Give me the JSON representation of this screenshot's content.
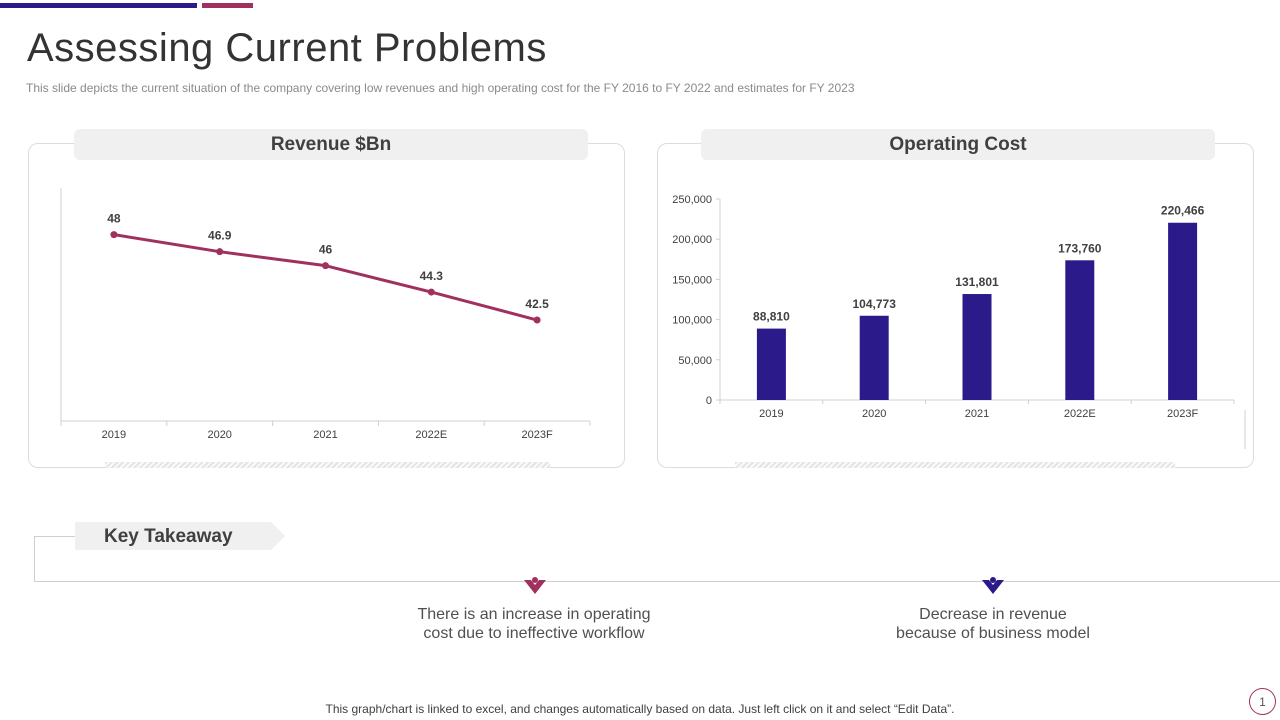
{
  "title": "Assessing Current Problems",
  "subtitle": "This slide depicts the current situation of the company covering low revenues and high operating cost for the FY  2016 to FY  2022 and estimates for FY 2023",
  "colors": {
    "accent_purple": "#a0305e",
    "accent_navy": "#2a1a8a"
  },
  "chart_data": [
    {
      "type": "line",
      "title": "Revenue $Bn",
      "categories": [
        "2019",
        "2020",
        "2021",
        "2022E",
        "2023F"
      ],
      "values": [
        48,
        46.9,
        46,
        44.3,
        42.5
      ],
      "value_labels": [
        "48",
        "46.9",
        "46",
        "44.3",
        "42.5"
      ],
      "ylim": [
        36,
        51
      ],
      "color": "#a0305e",
      "grid": false
    },
    {
      "type": "bar",
      "title": "Operating Cost",
      "categories": [
        "2019",
        "2020",
        "2021",
        "2022E",
        "2023F"
      ],
      "values": [
        88810,
        104773,
        131801,
        173760,
        220466
      ],
      "value_labels": [
        "88,810",
        "104,773",
        "131,801",
        "173,760",
        "220,466"
      ],
      "yticks": [
        "0",
        "50,000",
        "100,000",
        "150,000",
        "200,000",
        "250,000"
      ],
      "ylim": [
        0,
        250000
      ],
      "color": "#2a1a8a",
      "grid": false
    }
  ],
  "key_takeaway": {
    "label": "Key Takeaway",
    "points": [
      {
        "line1": "There is an increase in operating",
        "line2": "cost due to ineffective workflow",
        "icon": "person-marker-icon",
        "color": "#a0305e"
      },
      {
        "line1": "Decrease in revenue",
        "line2": "because of business model",
        "icon": "person-marker-icon",
        "color": "#2a1a8a"
      }
    ]
  },
  "footer": "This graph/chart is linked to excel,  and changes automatically based on data. Just left click on it and select “Edit Data”.",
  "page_number": "1"
}
